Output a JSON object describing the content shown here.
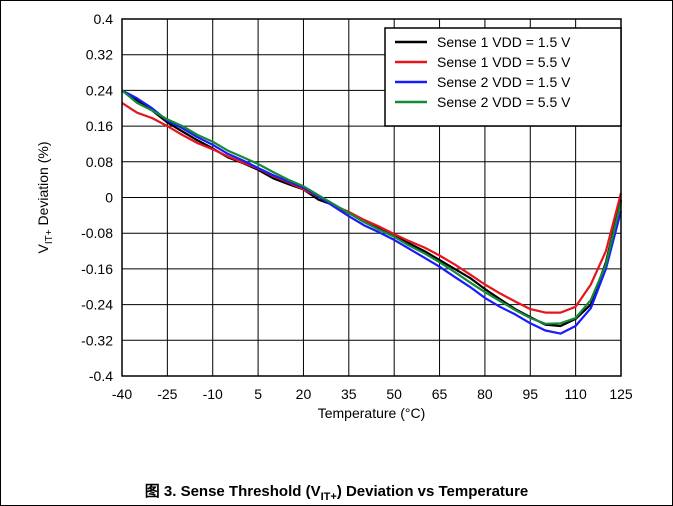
{
  "chart_data": {
    "type": "line",
    "title": "",
    "xlabel": "Temperature (°C)",
    "ylabel": {
      "main": "V",
      "sub": "IT+",
      "rest": " Deviation (%)"
    },
    "xlim": [
      -40,
      125
    ],
    "ylim": [
      -0.4,
      0.4
    ],
    "x_ticks": [
      "-40",
      "-25",
      "-10",
      "5",
      "20",
      "35",
      "50",
      "65",
      "80",
      "95",
      "110",
      "125"
    ],
    "x_tick_values": [
      -40,
      -25,
      -10,
      5,
      20,
      35,
      50,
      65,
      80,
      95,
      110,
      125
    ],
    "y_ticks": [
      "0.4",
      "0.32",
      "0.24",
      "0.16",
      "0.08",
      "0",
      "-0.08",
      "-0.16",
      "-0.24",
      "-0.32",
      "-0.4"
    ],
    "y_tick_values": [
      0.4,
      0.32,
      0.24,
      0.16,
      0.08,
      0,
      -0.08,
      -0.16,
      -0.24,
      -0.32,
      -0.4
    ],
    "grid": true,
    "legend_position": "top-right",
    "x": [
      -40,
      -35,
      -30,
      -25,
      -20,
      -15,
      -10,
      -5,
      0,
      5,
      10,
      15,
      20,
      25,
      30,
      35,
      40,
      45,
      50,
      55,
      60,
      65,
      70,
      75,
      80,
      85,
      90,
      95,
      100,
      105,
      110,
      115,
      120,
      125
    ],
    "series": [
      {
        "name": "Sense 1 VDD = 1.5 V",
        "color": "#000000",
        "values": [
          0.24,
          0.218,
          0.195,
          0.168,
          0.148,
          0.128,
          0.11,
          0.09,
          0.077,
          0.062,
          0.043,
          0.03,
          0.018,
          -0.005,
          -0.017,
          -0.035,
          -0.052,
          -0.068,
          -0.085,
          -0.103,
          -0.12,
          -0.14,
          -0.16,
          -0.18,
          -0.205,
          -0.228,
          -0.25,
          -0.268,
          -0.285,
          -0.288,
          -0.272,
          -0.24,
          -0.145,
          -0.005
        ]
      },
      {
        "name": "Sense 1 VDD = 5.5 V",
        "color": "#e8141c",
        "values": [
          0.212,
          0.19,
          0.178,
          0.16,
          0.14,
          0.122,
          0.108,
          0.092,
          0.078,
          0.065,
          0.048,
          0.034,
          0.018,
          0.002,
          -0.018,
          -0.032,
          -0.05,
          -0.065,
          -0.082,
          -0.098,
          -0.112,
          -0.13,
          -0.15,
          -0.172,
          -0.195,
          -0.215,
          -0.233,
          -0.25,
          -0.258,
          -0.258,
          -0.245,
          -0.195,
          -0.12,
          0.01
        ]
      },
      {
        "name": "Sense 2 VDD = 1.5 V",
        "color": "#1a1aff",
        "values": [
          0.24,
          0.222,
          0.2,
          0.172,
          0.155,
          0.135,
          0.118,
          0.098,
          0.083,
          0.066,
          0.05,
          0.036,
          0.022,
          0.002,
          -0.02,
          -0.042,
          -0.062,
          -0.078,
          -0.095,
          -0.115,
          -0.135,
          -0.155,
          -0.178,
          -0.2,
          -0.225,
          -0.245,
          -0.262,
          -0.282,
          -0.298,
          -0.305,
          -0.288,
          -0.248,
          -0.16,
          -0.03
        ]
      },
      {
        "name": "Sense 2 VDD = 5.5 V",
        "color": "#138a36",
        "values": [
          0.24,
          0.212,
          0.195,
          0.175,
          0.16,
          0.14,
          0.125,
          0.105,
          0.09,
          0.075,
          0.057,
          0.04,
          0.025,
          0.005,
          -0.015,
          -0.035,
          -0.055,
          -0.072,
          -0.088,
          -0.108,
          -0.125,
          -0.145,
          -0.167,
          -0.19,
          -0.212,
          -0.232,
          -0.252,
          -0.27,
          -0.283,
          -0.282,
          -0.27,
          -0.23,
          -0.15,
          -0.01
        ]
      }
    ]
  },
  "caption": {
    "prefix": "图 3. Sense Threshold (V",
    "sub": "IT+",
    "suffix": ") Deviation vs Temperature"
  }
}
